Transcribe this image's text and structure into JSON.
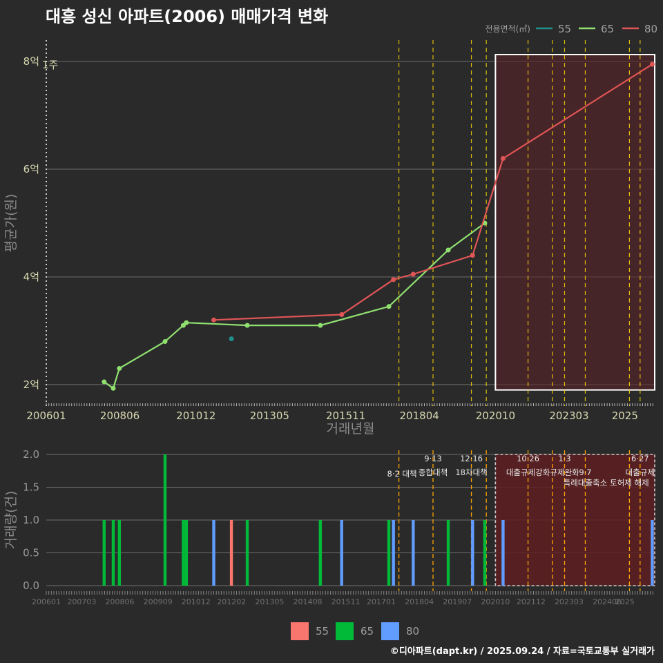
{
  "title": "대흥 성신 아파트(2006) 매매가격 변화",
  "credit": "©디아파트(dapt.kr) / 2025.09.24 / 자료=국토교통부 실거래가",
  "colors": {
    "background": "#2a2a2b",
    "grid": "#6e6e6e",
    "s55": "#20908c",
    "s65": "#90e070",
    "s80": "#e05555",
    "bar55": "#f8766d",
    "bar65": "#00ba38",
    "bar80": "#619cff",
    "policy": "#ffd700",
    "highlight": "#5a2326"
  },
  "chart_data": [
    {
      "type": "line",
      "ylabel": "평균가(원)",
      "xlabel": "거래년월",
      "x_ticks": [
        "200601",
        "200806",
        "201012",
        "201305",
        "201511",
        "201804",
        "202010",
        "202303",
        "2025"
      ],
      "y_ticks": [
        {
          "value": 2,
          "label": "2억"
        },
        {
          "value": 4,
          "label": "4억"
        },
        {
          "value": 6,
          "label": "6억"
        },
        {
          "value": 8,
          "label": "8억"
        }
      ],
      "ylim": [
        1.6,
        8.4
      ],
      "unit": "억",
      "grid": true,
      "legend_title": "전용면적(㎡)",
      "legend_position": "top-right",
      "marker_label": "1주",
      "series": [
        {
          "name": "55",
          "points": [
            [
              2012.08,
              2.85
            ]
          ]
        },
        {
          "name": "65",
          "points": [
            [
              2007.9,
              2.05
            ],
            [
              2008.2,
              1.93
            ],
            [
              2008.4,
              2.3
            ],
            [
              2009.9,
              2.8
            ],
            [
              2010.5,
              3.1
            ],
            [
              2010.6,
              3.15
            ],
            [
              2012.6,
              3.1
            ],
            [
              2015.0,
              3.1
            ],
            [
              2017.25,
              3.45
            ],
            [
              2019.2,
              4.5
            ],
            [
              2020.4,
              5.0
            ]
          ]
        },
        {
          "name": "80",
          "points": [
            [
              2011.5,
              3.2
            ],
            [
              2015.7,
              3.3
            ],
            [
              2017.4,
              3.95
            ],
            [
              2018.05,
              4.05
            ],
            [
              2020.0,
              4.4
            ],
            [
              2021.0,
              6.2
            ],
            [
              2025.9,
              7.95
            ]
          ]
        }
      ]
    },
    {
      "type": "bar",
      "ylabel": "거래량(건)",
      "x_ticks": [
        "200601",
        "200703",
        "200806",
        "200909",
        "201012",
        "201202",
        "201305",
        "201408",
        "201511",
        "201701",
        "201804",
        "201907",
        "202010",
        "202112",
        "202303",
        "202406",
        "2025"
      ],
      "y_ticks": [
        "0.0",
        "0.5",
        "1.0",
        "1.5",
        "2.0"
      ],
      "ylim": [
        0,
        2
      ],
      "legend_position": "bottom",
      "series": [
        {
          "name": "55",
          "bars": [
            [
              2012.08,
              1
            ]
          ]
        },
        {
          "name": "65",
          "bars": [
            [
              2007.9,
              1
            ],
            [
              2008.2,
              1
            ],
            [
              2008.4,
              1
            ],
            [
              2009.9,
              2
            ],
            [
              2010.5,
              1
            ],
            [
              2010.6,
              1
            ],
            [
              2012.6,
              1
            ],
            [
              2015.0,
              1
            ],
            [
              2017.25,
              1
            ],
            [
              2019.2,
              1
            ],
            [
              2020.4,
              1
            ]
          ]
        },
        {
          "name": "80",
          "bars": [
            [
              2011.5,
              1
            ],
            [
              2015.7,
              1
            ],
            [
              2017.4,
              1
            ],
            [
              2018.05,
              1
            ],
            [
              2020.0,
              1
            ],
            [
              2021.0,
              1
            ],
            [
              2025.9,
              1
            ]
          ]
        }
      ],
      "policies": [
        {
          "x": 2017.58,
          "date": "",
          "name": "8·2 대책"
        },
        {
          "x": 2018.7,
          "date": "9·13",
          "name": "종합대책"
        },
        {
          "x": 2019.96,
          "date": "12·16",
          "name": "18차대책"
        },
        {
          "x": 2020.45,
          "date": "",
          "name": ""
        },
        {
          "x": 2021.82,
          "date": "10·26",
          "name": "대출규제강화"
        },
        {
          "x": 2022.62,
          "date": "",
          "name": ""
        },
        {
          "x": 2023.02,
          "date": "1·3",
          "name": "규제완화"
        },
        {
          "x": 2023.7,
          "date": "9·7",
          "name": "특례대출축소"
        },
        {
          "x": 2025.15,
          "date": "",
          "name": "토허제 해제"
        },
        {
          "x": 2025.5,
          "date": "6·27",
          "name": "대출규제"
        }
      ],
      "highlight_range": [
        2020.75,
        2025.98
      ]
    }
  ]
}
